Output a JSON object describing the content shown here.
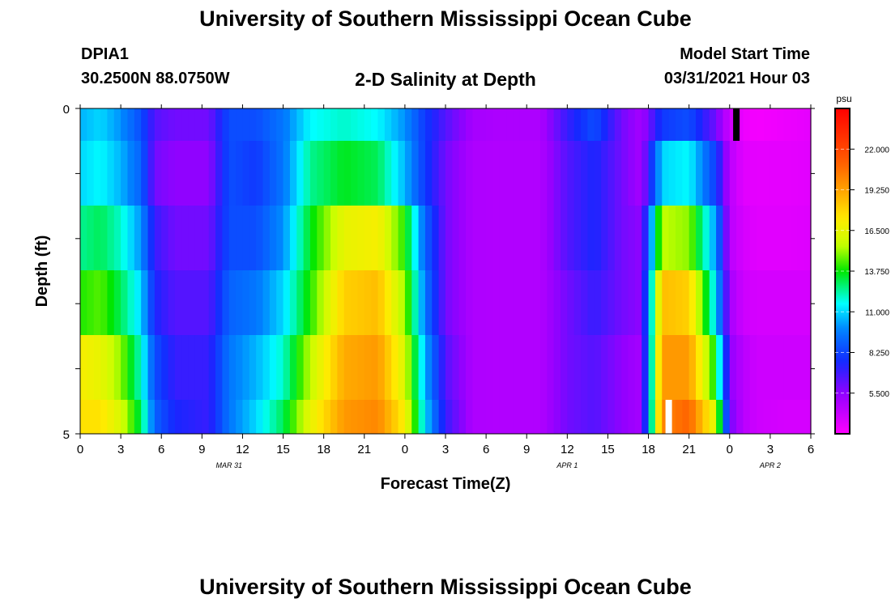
{
  "page": {
    "title_top": "University of Southern Mississippi Ocean Cube",
    "title_bottom": "University of Southern Mississippi Ocean Cube",
    "station_id": "DPIA1",
    "station_coords": "30.2500N  88.0750W",
    "plot_title": "2-D Salinity at Depth",
    "model_start_label": "Model Start Time",
    "model_start_value": "03/31/2021 Hour 03"
  },
  "chart_data": {
    "type": "heatmap",
    "title": "2-D Salinity at Depth",
    "xlabel": "Forecast Time(Z)",
    "ylabel": "Depth (ft)",
    "x_ticks": [
      "0",
      "3",
      "6",
      "9",
      "12",
      "15",
      "18",
      "21",
      "0",
      "3",
      "6",
      "9",
      "12",
      "15",
      "18",
      "21",
      "0",
      "3",
      "6"
    ],
    "y_ticks": [
      "0",
      "5"
    ],
    "date_labels": [
      {
        "label": "MAR 31",
        "at_hour": 11
      },
      {
        "label": "APR 1",
        "at_hour": 36
      },
      {
        "label": "APR 2",
        "at_hour": 51
      }
    ],
    "x_range_hours": [
      0,
      54
    ],
    "depth_range": [
      0,
      5
    ],
    "colorbar": {
      "unit": "psu",
      "range": [
        2.75,
        24.75
      ],
      "ticks": [
        "22.000",
        "19.250",
        "16.500",
        "13.750",
        "11.000",
        "8.250",
        "5.500"
      ]
    },
    "depth_rows": [
      "0-0.5",
      "0.5-1.5",
      "1.5-2.5",
      "2.5-3.5",
      "3.5-4.5",
      "4.5-5"
    ],
    "key_hours": [
      0,
      1.5,
      3,
      4.5,
      5.5,
      7,
      9.5,
      11,
      13,
      15,
      17,
      19.5,
      22,
      24,
      25.5,
      27,
      29,
      31,
      34,
      36,
      38,
      40,
      41.5,
      43,
      45,
      47,
      48,
      49,
      50,
      52,
      54
    ],
    "salinity_psu": [
      [
        10.5,
        11.0,
        10.0,
        8.5,
        6.5,
        6.0,
        6.0,
        8.5,
        8.5,
        9.5,
        11.5,
        12.0,
        11.5,
        10.0,
        8.0,
        6.5,
        5.0,
        4.8,
        4.8,
        7.0,
        8.5,
        6.0,
        5.0,
        8.0,
        8.5,
        6.0,
        4.0,
        3.2,
        3.0,
        3.2,
        3.4
      ],
      [
        11.0,
        11.5,
        10.5,
        9.0,
        6.0,
        5.5,
        5.5,
        8.5,
        8.0,
        9.5,
        12.5,
        13.5,
        13.0,
        10.5,
        8.0,
        6.0,
        4.8,
        4.7,
        4.7,
        6.5,
        7.5,
        6.0,
        5.0,
        11.0,
        11.5,
        8.0,
        4.5,
        3.5,
        3.4,
        3.4,
        3.5
      ],
      [
        12.5,
        13.0,
        12.0,
        10.0,
        7.0,
        6.0,
        6.0,
        8.5,
        8.5,
        10.0,
        13.5,
        16.5,
        17.0,
        14.0,
        9.0,
        6.0,
        4.8,
        4.7,
        4.7,
        6.5,
        7.5,
        6.0,
        5.5,
        15.5,
        15.0,
        10.0,
        4.5,
        3.8,
        3.5,
        3.5,
        3.6
      ],
      [
        14.0,
        14.5,
        13.0,
        11.0,
        7.5,
        6.5,
        6.5,
        9.0,
        9.5,
        11.0,
        14.0,
        18.0,
        18.5,
        15.0,
        9.5,
        6.0,
        4.8,
        4.7,
        4.7,
        6.0,
        7.0,
        6.0,
        5.5,
        18.5,
        18.0,
        11.0,
        5.0,
        4.0,
        3.8,
        3.8,
        3.8
      ],
      [
        17.0,
        16.5,
        15.0,
        12.0,
        8.5,
        7.0,
        7.0,
        9.5,
        10.5,
        12.0,
        15.5,
        19.0,
        19.5,
        16.0,
        10.5,
        6.5,
        4.8,
        4.7,
        4.7,
        6.0,
        6.5,
        5.5,
        5.0,
        19.5,
        19.5,
        13.5,
        5.5,
        4.5,
        4.0,
        4.0,
        4.0
      ],
      [
        17.5,
        17.5,
        16.0,
        13.0,
        9.0,
        7.5,
        7.0,
        9.5,
        11.0,
        13.0,
        16.5,
        19.5,
        20.0,
        17.0,
        11.0,
        7.0,
        4.8,
        4.7,
        4.7,
        6.0,
        6.5,
        5.5,
        5.0,
        20.0,
        21.0,
        16.0,
        6.0,
        4.5,
        4.0,
        3.8,
        3.8
      ]
    ],
    "missing_data_marks": [
      {
        "row": 0,
        "hour": 48.5,
        "color": "#000000"
      },
      {
        "row": 5,
        "hour": 43.5,
        "color": "#ffffff"
      }
    ]
  }
}
